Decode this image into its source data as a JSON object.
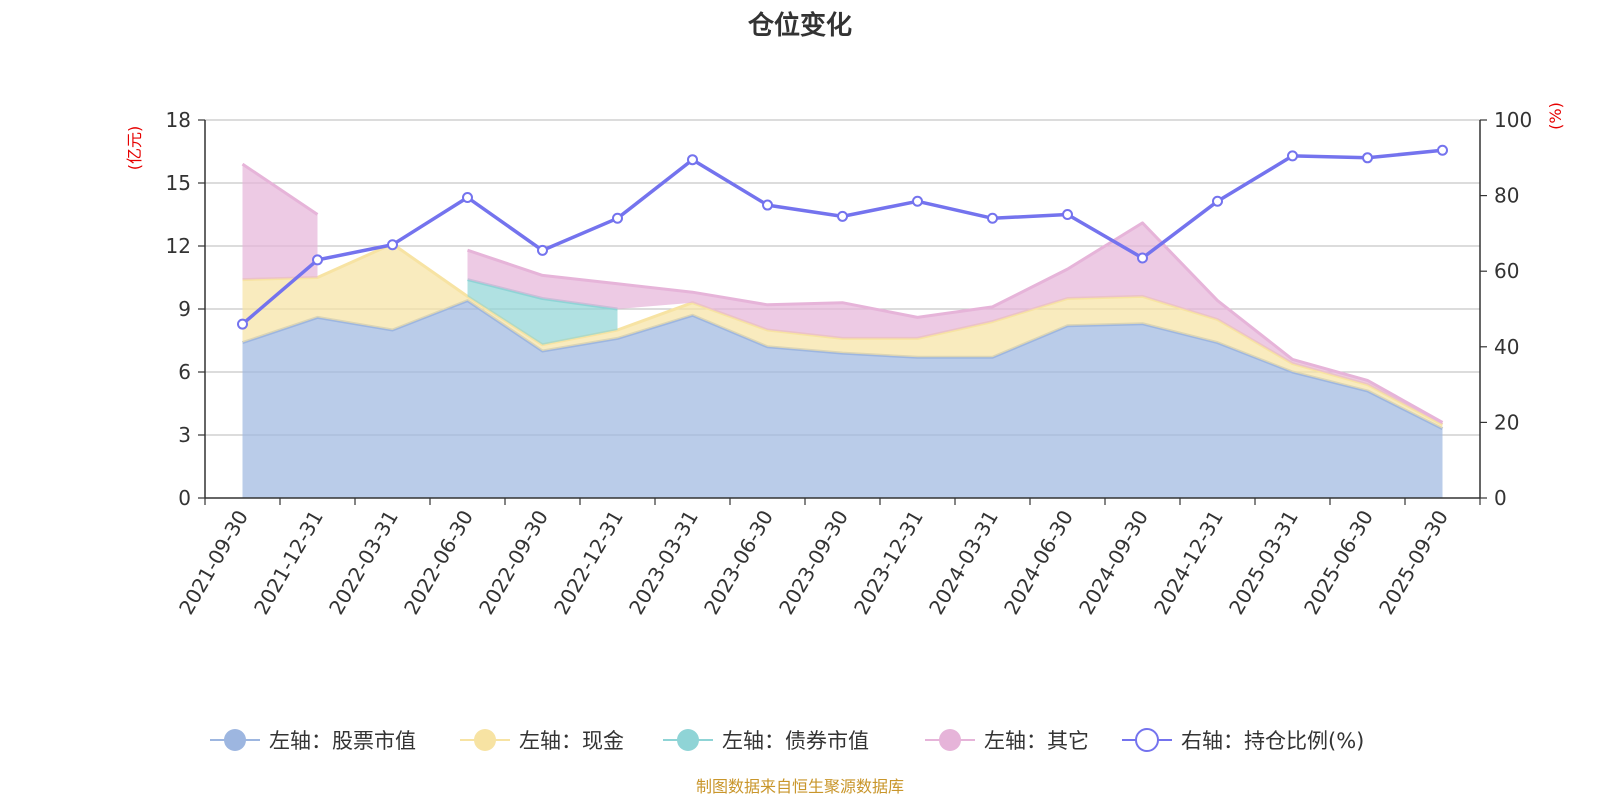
{
  "colors": {
    "stock": "#9db6e0",
    "cash": "#f7e3a3",
    "bond": "#8fd4d6",
    "other": "#e6b4d9",
    "ratio": "#7473ee",
    "unit": "#e60000",
    "source": "#c9962b",
    "grid": "#c8c8c8",
    "axis": "#333333"
  },
  "chart_data": {
    "type": "area",
    "title": "仓位变化",
    "left_unit": "(亿元)",
    "right_unit": "(%)",
    "source_note": "制图数据来自恒生聚源数据库",
    "categories": [
      "2021-09-30",
      "2021-12-31",
      "2022-03-31",
      "2022-06-30",
      "2022-09-30",
      "2022-12-31",
      "2023-03-31",
      "2023-06-30",
      "2023-09-30",
      "2023-12-31",
      "2024-03-31",
      "2024-06-30",
      "2024-09-30",
      "2024-12-31",
      "2025-03-31",
      "2025-06-30",
      "2025-09-30"
    ],
    "left_axis": {
      "min": 0,
      "max": 18,
      "ticks": [
        0,
        3,
        6,
        9,
        12,
        15,
        18
      ]
    },
    "right_axis": {
      "min": 0,
      "max": 100,
      "ticks": [
        0,
        20,
        40,
        60,
        80,
        100
      ]
    },
    "series": [
      {
        "key": "stock",
        "name": "左轴：股票市值",
        "axis": "left",
        "values": [
          7.4,
          8.6,
          8.0,
          9.4,
          7.0,
          7.6,
          8.7,
          7.2,
          6.9,
          6.7,
          6.7,
          8.2,
          8.3,
          7.4,
          6.0,
          5.1,
          3.3
        ]
      },
      {
        "key": "cash",
        "name": "左轴：现金",
        "axis": "left",
        "values": [
          3.0,
          1.9,
          4.1,
          0.2,
          0.3,
          0.4,
          0.6,
          0.8,
          0.7,
          0.9,
          1.7,
          1.3,
          1.3,
          1.1,
          0.4,
          0.3,
          0.2
        ]
      },
      {
        "key": "bond",
        "name": "左轴：债券市值",
        "axis": "left",
        "values": [
          0,
          0,
          0,
          0.8,
          2.2,
          1.0,
          0,
          0,
          0,
          0,
          0,
          0,
          0,
          0,
          0,
          0,
          0
        ]
      },
      {
        "key": "other",
        "name": "左轴：其它",
        "axis": "left",
        "values": [
          5.5,
          3.0,
          0,
          1.4,
          1.1,
          1.2,
          0.5,
          1.2,
          1.7,
          1.0,
          0.7,
          1.4,
          3.5,
          0.9,
          0.2,
          0.2,
          0.1
        ]
      },
      {
        "key": "ratio",
        "name": "右轴：持仓比例(%)",
        "axis": "right",
        "values": [
          46.0,
          63.0,
          67.0,
          79.5,
          65.5,
          74.0,
          89.5,
          77.5,
          74.5,
          78.5,
          74.0,
          75.0,
          63.5,
          78.5,
          90.5,
          90.0,
          92.0
        ]
      }
    ]
  }
}
